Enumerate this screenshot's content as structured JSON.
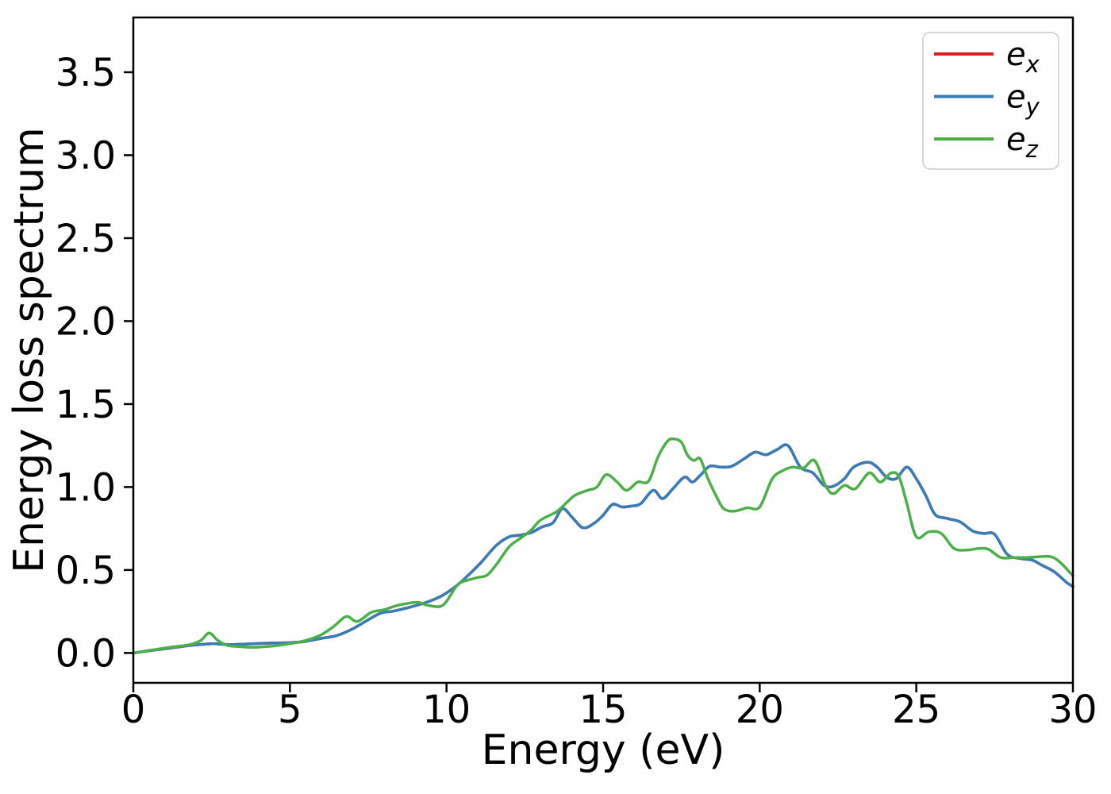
{
  "figure": {
    "background": "#ffffff",
    "spine_color": "#000000"
  },
  "chart_data": {
    "type": "line",
    "title": "",
    "xlabel": "Energy (eV)",
    "ylabel": "Energy loss spectrum",
    "xlim": [
      0,
      30
    ],
    "ylim": [
      -0.18,
      3.83
    ],
    "grid": false,
    "legend_position": "upper right",
    "legend_frame_color": "#cccccc",
    "xticks": {
      "values": [
        0,
        5,
        10,
        15,
        20,
        25,
        30
      ],
      "labels": [
        "0",
        "5",
        "10",
        "15",
        "20",
        "25",
        "30"
      ]
    },
    "yticks": {
      "values": [
        0.0,
        0.5,
        1.0,
        1.5,
        2.0,
        2.5,
        3.0,
        3.5
      ],
      "labels": [
        "0.0",
        "0.5",
        "1.0",
        "1.5",
        "2.0",
        "2.5",
        "3.0",
        "3.5"
      ]
    },
    "series": [
      {
        "name": "e_x",
        "legend_main": "e",
        "legend_sub": "x",
        "color": "#e41a1c",
        "x": [
          0,
          0.6,
          1.2,
          1.8,
          2.2,
          2.6,
          3.0,
          3.5,
          4.0,
          4.5,
          5.0,
          5.5,
          6.0,
          6.5,
          7.0,
          7.5,
          7.9,
          8.3,
          8.7,
          9.1,
          9.5,
          9.9,
          10.35,
          10.7,
          11.1,
          11.6,
          12.0,
          12.35,
          12.7,
          13.05,
          13.4,
          13.7,
          14.0,
          14.35,
          14.7,
          15.0,
          15.3,
          15.6,
          15.9,
          16.2,
          16.6,
          16.9,
          17.25,
          17.6,
          17.85,
          18.1,
          18.4,
          18.75,
          19.1,
          19.5,
          19.85,
          20.2,
          20.55,
          20.9,
          21.3,
          21.7,
          22.05,
          22.35,
          22.7,
          23.0,
          23.45,
          23.75,
          24.05,
          24.35,
          24.7,
          25.0,
          25.3,
          25.6,
          26.0,
          26.4,
          26.8,
          27.15,
          27.5,
          27.9,
          28.3,
          28.7,
          29.0,
          29.4,
          29.8,
          30.0
        ],
        "y": [
          0,
          0.015,
          0.03,
          0.045,
          0.052,
          0.056,
          0.05,
          0.053,
          0.057,
          0.06,
          0.062,
          0.07,
          0.088,
          0.105,
          0.145,
          0.2,
          0.24,
          0.252,
          0.27,
          0.29,
          0.315,
          0.35,
          0.41,
          0.47,
          0.545,
          0.65,
          0.7,
          0.71,
          0.725,
          0.76,
          0.785,
          0.87,
          0.82,
          0.755,
          0.78,
          0.83,
          0.895,
          0.88,
          0.885,
          0.9,
          0.98,
          0.93,
          0.995,
          1.06,
          1.03,
          1.07,
          1.125,
          1.12,
          1.125,
          1.17,
          1.21,
          1.195,
          1.225,
          1.25,
          1.12,
          1.085,
          1.01,
          1.005,
          1.05,
          1.12,
          1.15,
          1.12,
          1.06,
          1.05,
          1.12,
          1.05,
          0.95,
          0.835,
          0.81,
          0.79,
          0.735,
          0.72,
          0.715,
          0.595,
          0.57,
          0.56,
          0.53,
          0.49,
          0.425,
          0.4
        ]
      },
      {
        "name": "e_y",
        "legend_main": "e",
        "legend_sub": "y",
        "color": "#377eb8",
        "x": [
          0,
          0.6,
          1.2,
          1.8,
          2.2,
          2.6,
          3.0,
          3.5,
          4.0,
          4.5,
          5.0,
          5.5,
          6.0,
          6.5,
          7.0,
          7.5,
          7.9,
          8.3,
          8.7,
          9.1,
          9.5,
          9.9,
          10.35,
          10.7,
          11.1,
          11.6,
          12.0,
          12.35,
          12.7,
          13.05,
          13.4,
          13.7,
          14.0,
          14.35,
          14.7,
          15.0,
          15.3,
          15.6,
          15.9,
          16.2,
          16.6,
          16.9,
          17.25,
          17.6,
          17.85,
          18.1,
          18.4,
          18.75,
          19.1,
          19.5,
          19.85,
          20.2,
          20.55,
          20.9,
          21.3,
          21.7,
          22.05,
          22.35,
          22.7,
          23.0,
          23.45,
          23.75,
          24.05,
          24.35,
          24.7,
          25.0,
          25.3,
          25.6,
          26.0,
          26.4,
          26.8,
          27.15,
          27.5,
          27.9,
          28.3,
          28.7,
          29.0,
          29.4,
          29.8,
          30.0
        ],
        "y": [
          0,
          0.015,
          0.03,
          0.045,
          0.052,
          0.056,
          0.05,
          0.053,
          0.057,
          0.06,
          0.062,
          0.07,
          0.088,
          0.105,
          0.145,
          0.2,
          0.24,
          0.252,
          0.27,
          0.29,
          0.315,
          0.35,
          0.41,
          0.47,
          0.545,
          0.65,
          0.7,
          0.71,
          0.725,
          0.76,
          0.785,
          0.87,
          0.82,
          0.755,
          0.78,
          0.83,
          0.895,
          0.88,
          0.885,
          0.9,
          0.98,
          0.93,
          0.995,
          1.06,
          1.03,
          1.07,
          1.125,
          1.12,
          1.125,
          1.17,
          1.21,
          1.195,
          1.225,
          1.25,
          1.12,
          1.085,
          1.01,
          1.005,
          1.05,
          1.12,
          1.15,
          1.12,
          1.06,
          1.05,
          1.12,
          1.05,
          0.95,
          0.835,
          0.81,
          0.79,
          0.735,
          0.72,
          0.715,
          0.595,
          0.57,
          0.56,
          0.53,
          0.49,
          0.425,
          0.4
        ]
      },
      {
        "name": "e_z",
        "legend_main": "e",
        "legend_sub": "z",
        "color": "#4daf4a",
        "x": [
          0,
          0.6,
          1.2,
          1.8,
          2.15,
          2.42,
          2.7,
          3.0,
          3.4,
          3.8,
          4.2,
          4.6,
          5.0,
          5.5,
          6.0,
          6.4,
          6.8,
          7.15,
          7.6,
          8.0,
          8.4,
          8.8,
          9.1,
          9.45,
          9.9,
          10.35,
          10.7,
          11.0,
          11.3,
          11.6,
          12.0,
          12.35,
          12.7,
          13.0,
          13.5,
          13.8,
          14.1,
          14.5,
          14.8,
          15.1,
          15.45,
          15.75,
          16.1,
          16.45,
          16.75,
          17.05,
          17.25,
          17.5,
          17.7,
          17.9,
          18.1,
          18.35,
          18.6,
          18.85,
          19.2,
          19.6,
          20.0,
          20.4,
          20.75,
          21.05,
          21.4,
          21.75,
          22.1,
          22.35,
          22.7,
          23.05,
          23.5,
          23.85,
          24.2,
          24.45,
          24.7,
          25.0,
          25.4,
          25.8,
          26.2,
          26.6,
          27.0,
          27.3,
          27.7,
          28.1,
          28.5,
          28.9,
          29.3,
          29.6,
          30.0
        ],
        "y": [
          0,
          0.018,
          0.035,
          0.05,
          0.075,
          0.12,
          0.075,
          0.046,
          0.038,
          0.034,
          0.038,
          0.045,
          0.056,
          0.075,
          0.11,
          0.16,
          0.22,
          0.19,
          0.245,
          0.26,
          0.285,
          0.3,
          0.305,
          0.285,
          0.29,
          0.41,
          0.44,
          0.455,
          0.47,
          0.535,
          0.64,
          0.69,
          0.74,
          0.8,
          0.85,
          0.9,
          0.95,
          0.98,
          1.0,
          1.075,
          1.03,
          0.98,
          1.03,
          1.035,
          1.18,
          1.275,
          1.29,
          1.27,
          1.19,
          1.16,
          1.17,
          1.05,
          0.95,
          0.87,
          0.855,
          0.875,
          0.88,
          1.05,
          1.1,
          1.12,
          1.115,
          1.16,
          1.01,
          0.96,
          1.01,
          0.99,
          1.085,
          1.03,
          1.085,
          1.06,
          0.9,
          0.7,
          0.73,
          0.72,
          0.63,
          0.62,
          0.63,
          0.625,
          0.575,
          0.575,
          0.575,
          0.58,
          0.58,
          0.545,
          0.465
        ]
      }
    ]
  }
}
